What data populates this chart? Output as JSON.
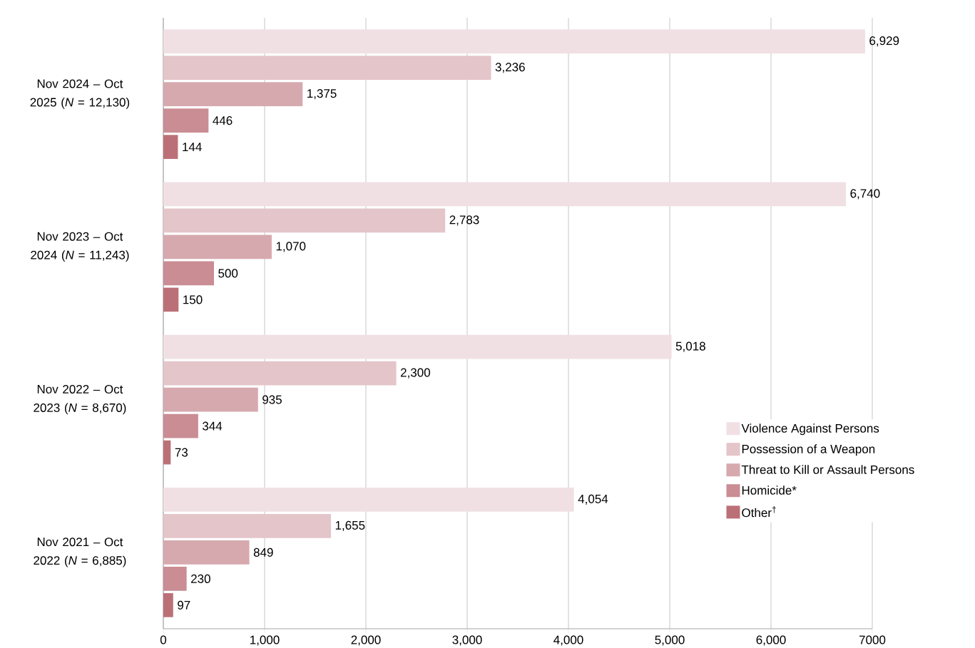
{
  "chart_data": {
    "type": "bar",
    "orientation": "horizontal",
    "categories": [
      "Nov 2024 – Oct 2025 (*N* = 12,130)",
      "Nov 2023 – Oct 2024 (*N* = 11,243)",
      "Nov 2022 – Oct 2023 (*N* = 8,670)",
      "Nov 2021 – Oct 2022 (*N* = 6,885)"
    ],
    "series": [
      {
        "name": "Violence Against Persons",
        "color": "#f0e0e4",
        "values": [
          6929,
          6740,
          5018,
          4054
        ],
        "value_labels": [
          "6,929",
          "6,740",
          "5,018",
          "4,054"
        ]
      },
      {
        "name": "Possession of a Weapon",
        "color": "#e4c5ca",
        "values": [
          3236,
          2783,
          2300,
          1655
        ],
        "value_labels": [
          "3,236",
          "2,783",
          "2,300",
          "1,655"
        ]
      },
      {
        "name": "Threat to Kill or Assault Persons",
        "color": "#d6a9ae",
        "values": [
          1375,
          1070,
          935,
          849
        ],
        "value_labels": [
          "1,375",
          "1,070",
          "935",
          "849"
        ]
      },
      {
        "name": "Homicide*",
        "color": "#c98d93",
        "values": [
          446,
          500,
          344,
          230
        ],
        "value_labels": [
          "446",
          "500",
          "344",
          "230"
        ]
      },
      {
        "name": "Other$^{†}$",
        "color": "#bb7077",
        "values": [
          144,
          150,
          73,
          97
        ],
        "value_labels": [
          "144",
          "150",
          "73",
          "97"
        ]
      }
    ],
    "xlim": [
      0,
      7000
    ],
    "xticks": [
      0,
      {
        "value": 1000,
        "label": "1,000"
      },
      {
        "value": 2000,
        "label": "2,000"
      },
      {
        "value": 3000,
        "label": "3,000"
      },
      {
        "value": 4000,
        "label": "4,000"
      },
      {
        "value": 5000,
        "label": "5,000"
      },
      {
        "value": 6000,
        "label": "6,000"
      },
      7000
    ],
    "grid": "x",
    "legend": "bottom right"
  }
}
